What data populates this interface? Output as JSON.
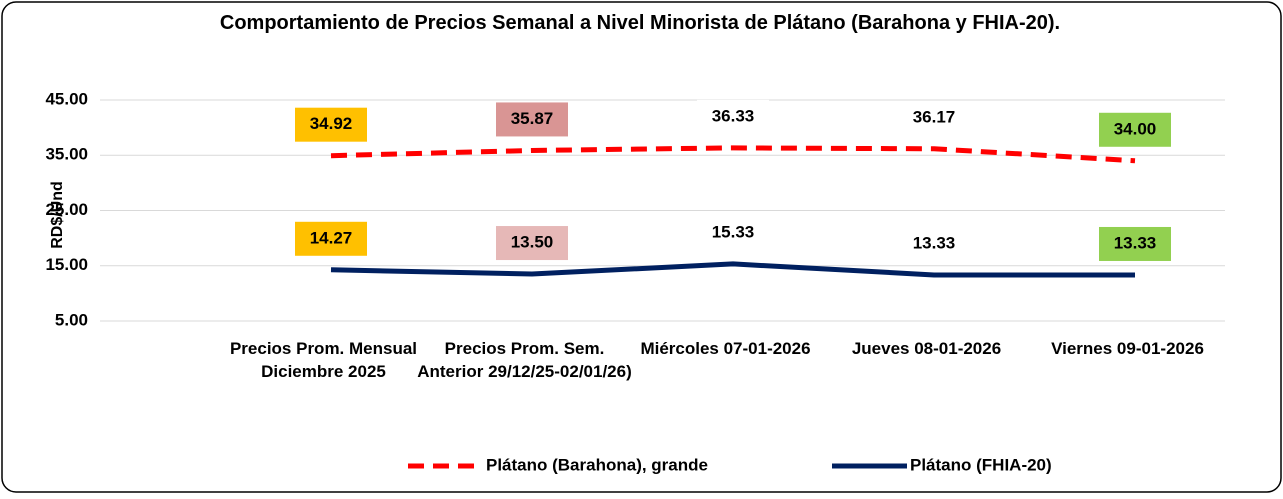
{
  "chart_data": {
    "type": "line",
    "title": "Comportamiento de Precios Semanal a Nivel Minorista de Plátano (Barahona y FHIA-20).",
    "y_label": "RD$/Und",
    "categories": [
      "Precios Prom. Mensual Diciembre 2025",
      "Precios Prom. Sem. Anterior 29/12/25-02/01/26)",
      "Miércoles 07-01-2026",
      "Jueves 08-01-2026",
      "Viernes 09-01-2026"
    ],
    "series": [
      {
        "name": "Plátano (Barahona), grande",
        "color": "#ff0000",
        "dashed": true,
        "values": [
          34.92,
          35.87,
          36.33,
          36.17,
          34.0
        ],
        "value_labels": [
          "34.92",
          "35.87",
          "36.33",
          "36.17",
          "34.00"
        ],
        "label_colors": [
          "#ffc000",
          "#d99594",
          null,
          null,
          "#92d050"
        ]
      },
      {
        "name": "Plátano (FHIA-20)",
        "color": "#002060",
        "dashed": false,
        "values": [
          14.27,
          13.5,
          15.33,
          13.33,
          13.33
        ],
        "value_labels": [
          "14.27",
          "13.50",
          "15.33",
          "13.33",
          "13.33"
        ],
        "label_colors": [
          "#ffc000",
          "#e6b8b7",
          null,
          null,
          "#92d050"
        ]
      }
    ],
    "ylim": [
      5,
      45
    ],
    "yticks": [
      {
        "value": 5,
        "label": "5.00"
      },
      {
        "value": 15,
        "label": "15.00"
      },
      {
        "value": 25,
        "label": "25.00"
      },
      {
        "value": 35,
        "label": "35.00"
      },
      {
        "value": 45,
        "label": "45.00"
      }
    ],
    "grid": true,
    "legend": "bottom"
  }
}
